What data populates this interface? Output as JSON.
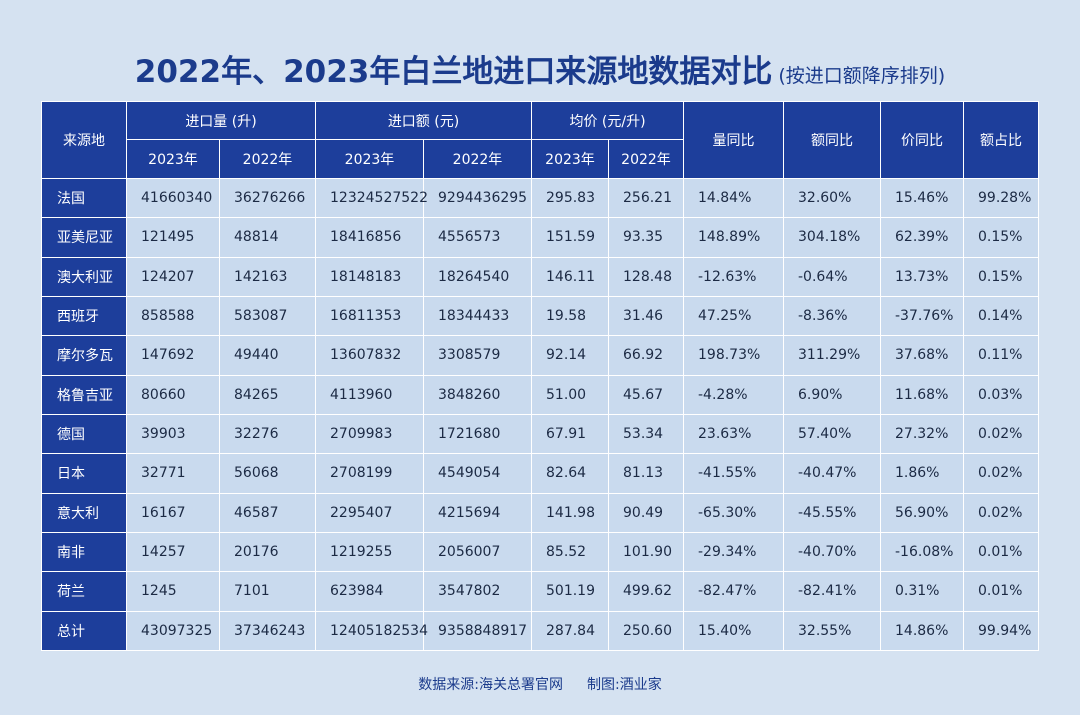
{
  "title": {
    "main": "2022年、2023年白兰地进口来源地数据对比",
    "sub": "(按进口额降序排列)"
  },
  "colors": {
    "header_bg": "#1d3e9b",
    "cell_bg": "#c9daee",
    "page_bg": "#d5e2f1",
    "title_color": "#1b3b8c"
  },
  "chart_data": {
    "type": "table",
    "header": {
      "source": "来源地",
      "volume": "进口量 (升)",
      "amount": "进口额 (元)",
      "price": "均价 (元/升)",
      "vol_yoy": "量同比",
      "amt_yoy": "额同比",
      "price_yoy": "价同比",
      "share": "额占比",
      "years": [
        "2023年",
        "2022年",
        "2023年",
        "2022年",
        "2023年",
        "2022年"
      ]
    },
    "rows": [
      [
        "法国",
        "41660340",
        "36276266",
        "12324527522",
        "9294436295",
        "295.83",
        "256.21",
        "14.84%",
        "32.60%",
        "15.46%",
        "99.28%"
      ],
      [
        "亚美尼亚",
        "121495",
        "48814",
        "18416856",
        "4556573",
        "151.59",
        "93.35",
        "148.89%",
        "304.18%",
        "62.39%",
        "0.15%"
      ],
      [
        "澳大利亚",
        "124207",
        "142163",
        "18148183",
        "18264540",
        "146.11",
        "128.48",
        "-12.63%",
        "-0.64%",
        "13.73%",
        "0.15%"
      ],
      [
        "西班牙",
        "858588",
        "583087",
        "16811353",
        "18344433",
        "19.58",
        "31.46",
        "47.25%",
        "-8.36%",
        "-37.76%",
        "0.14%"
      ],
      [
        "摩尔多瓦",
        "147692",
        "49440",
        "13607832",
        "3308579",
        "92.14",
        "66.92",
        "198.73%",
        "311.29%",
        "37.68%",
        "0.11%"
      ],
      [
        "格鲁吉亚",
        "80660",
        "84265",
        "4113960",
        "3848260",
        "51.00",
        "45.67",
        "-4.28%",
        "6.90%",
        "11.68%",
        "0.03%"
      ],
      [
        "德国",
        "39903",
        "32276",
        "2709983",
        "1721680",
        "67.91",
        "53.34",
        "23.63%",
        "57.40%",
        "27.32%",
        "0.02%"
      ],
      [
        "日本",
        "32771",
        "56068",
        "2708199",
        "4549054",
        "82.64",
        "81.13",
        "-41.55%",
        "-40.47%",
        "1.86%",
        "0.02%"
      ],
      [
        "意大利",
        "16167",
        "46587",
        "2295407",
        "4215694",
        "141.98",
        "90.49",
        "-65.30%",
        "-45.55%",
        "56.90%",
        "0.02%"
      ],
      [
        "南非",
        "14257",
        "20176",
        "1219255",
        "2056007",
        "85.52",
        "101.90",
        "-29.34%",
        "-40.70%",
        "-16.08%",
        "0.01%"
      ],
      [
        "荷兰",
        "1245",
        "7101",
        "623984",
        "3547802",
        "501.19",
        "499.62",
        "-82.47%",
        "-82.41%",
        "0.31%",
        "0.01%"
      ],
      [
        "总计",
        "43097325",
        "37346243",
        "12405182534",
        "9358848917",
        "287.84",
        "250.60",
        "15.40%",
        "32.55%",
        "14.86%",
        "99.94%"
      ]
    ]
  },
  "footer": {
    "source": "数据来源:海关总署官网",
    "credit": "制图:酒业家"
  }
}
